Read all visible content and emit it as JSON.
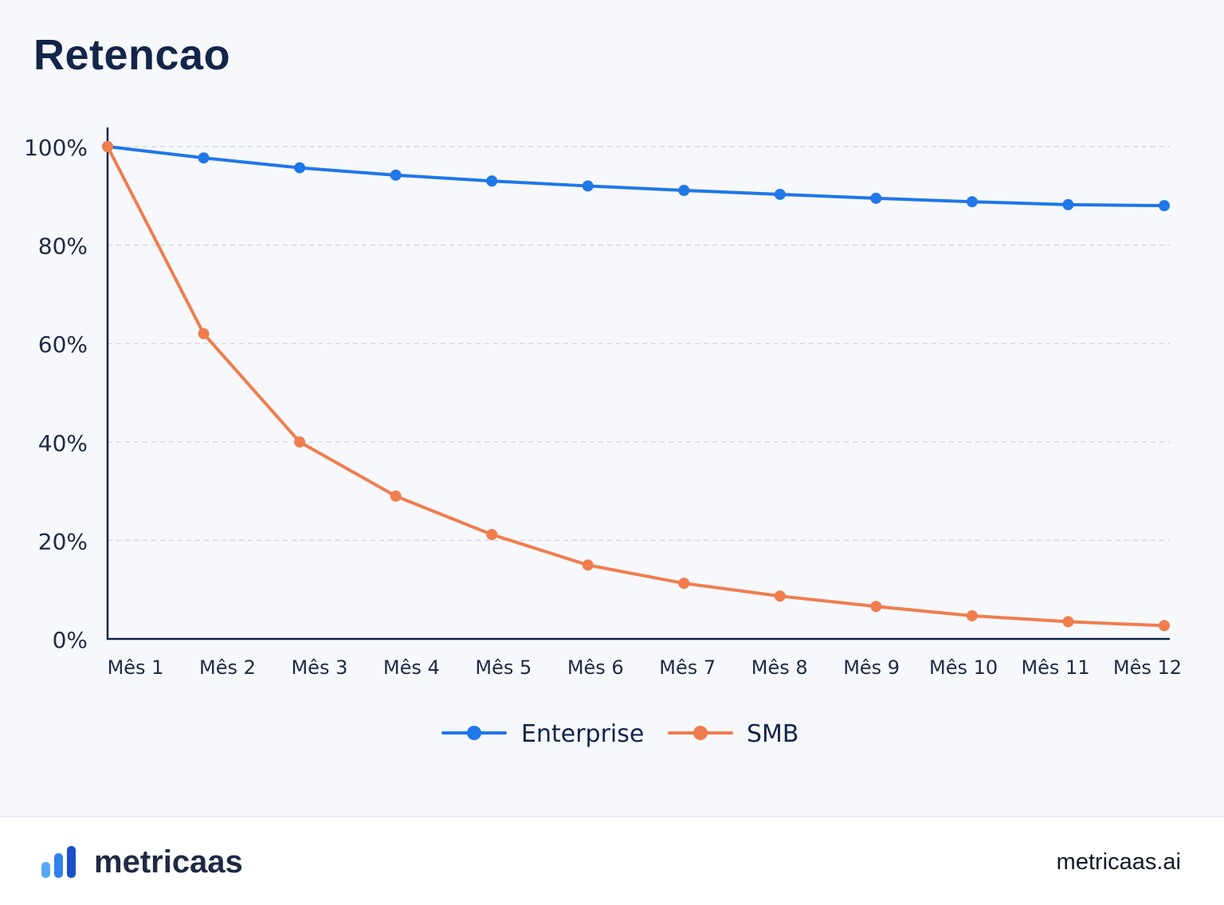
{
  "title": "Retencao",
  "chart_data": {
    "type": "line",
    "categories": [
      "Mês 1",
      "Mês 2",
      "Mês 3",
      "Mês 4",
      "Mês 5",
      "Mês 6",
      "Mês 7",
      "Mês 8",
      "Mês 9",
      "Mês 10",
      "Mês 11",
      "Mês 12"
    ],
    "series": [
      {
        "name": "Enterprise",
        "color": "#1f77e8",
        "values": [
          100,
          97.7,
          95.7,
          94.2,
          93.0,
          92.0,
          91.1,
          90.3,
          89.5,
          88.8,
          88.2,
          88.0
        ]
      },
      {
        "name": "SMB",
        "color": "#f07d4e",
        "values": [
          100,
          62,
          40,
          29,
          21.2,
          15,
          11.3,
          8.7,
          6.6,
          4.7,
          3.5,
          2.7
        ]
      }
    ],
    "ylim": [
      0,
      100
    ],
    "yticks": [
      "0%",
      "20%",
      "40%",
      "60%",
      "80%",
      "100%"
    ],
    "ytick_values": [
      0,
      20,
      40,
      60,
      80,
      100
    ],
    "grid": true,
    "legend": "bottom-center"
  },
  "footer": {
    "brand": "metricaas",
    "site": "metricaas.ai",
    "logo_icon": "bar-chart-logo-icon"
  }
}
